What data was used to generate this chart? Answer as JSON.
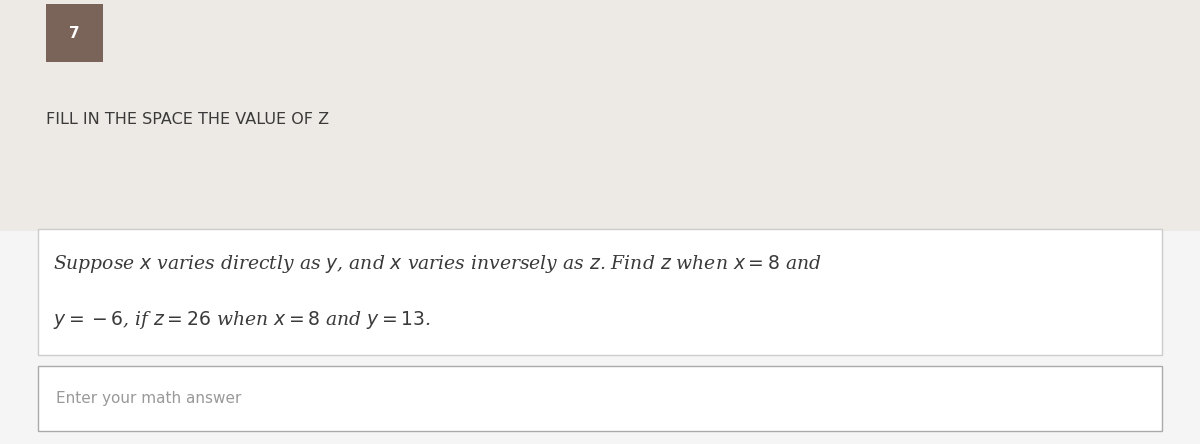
{
  "question_number": "7",
  "question_number_bg": "#7a6358",
  "question_number_color": "#ffffff",
  "header_text": "FILL IN THE SPACE THE VALUE OF Z",
  "header_bg": "#ede9e4",
  "header_text_color": "#3a3a3a",
  "problem_text_line1": "Suppose $x$ varies directly as $y$, and $x$ varies inversely as $z$. Find $z$ when $x = 8$ and",
  "problem_text_line2": "$y = -6$, if $z = 26$ when $x = 8$ and $y = 13$.",
  "problem_bg": "#ffffff",
  "problem_text_color": "#3a3a3a",
  "problem_border_color": "#cccccc",
  "input_placeholder": "Enter your math answer",
  "input_bg": "#ffffff",
  "input_border_color": "#aaaaaa",
  "input_text_color": "#999999",
  "outer_bg": "#f5f5f5",
  "fig_width": 12.0,
  "fig_height": 4.44
}
